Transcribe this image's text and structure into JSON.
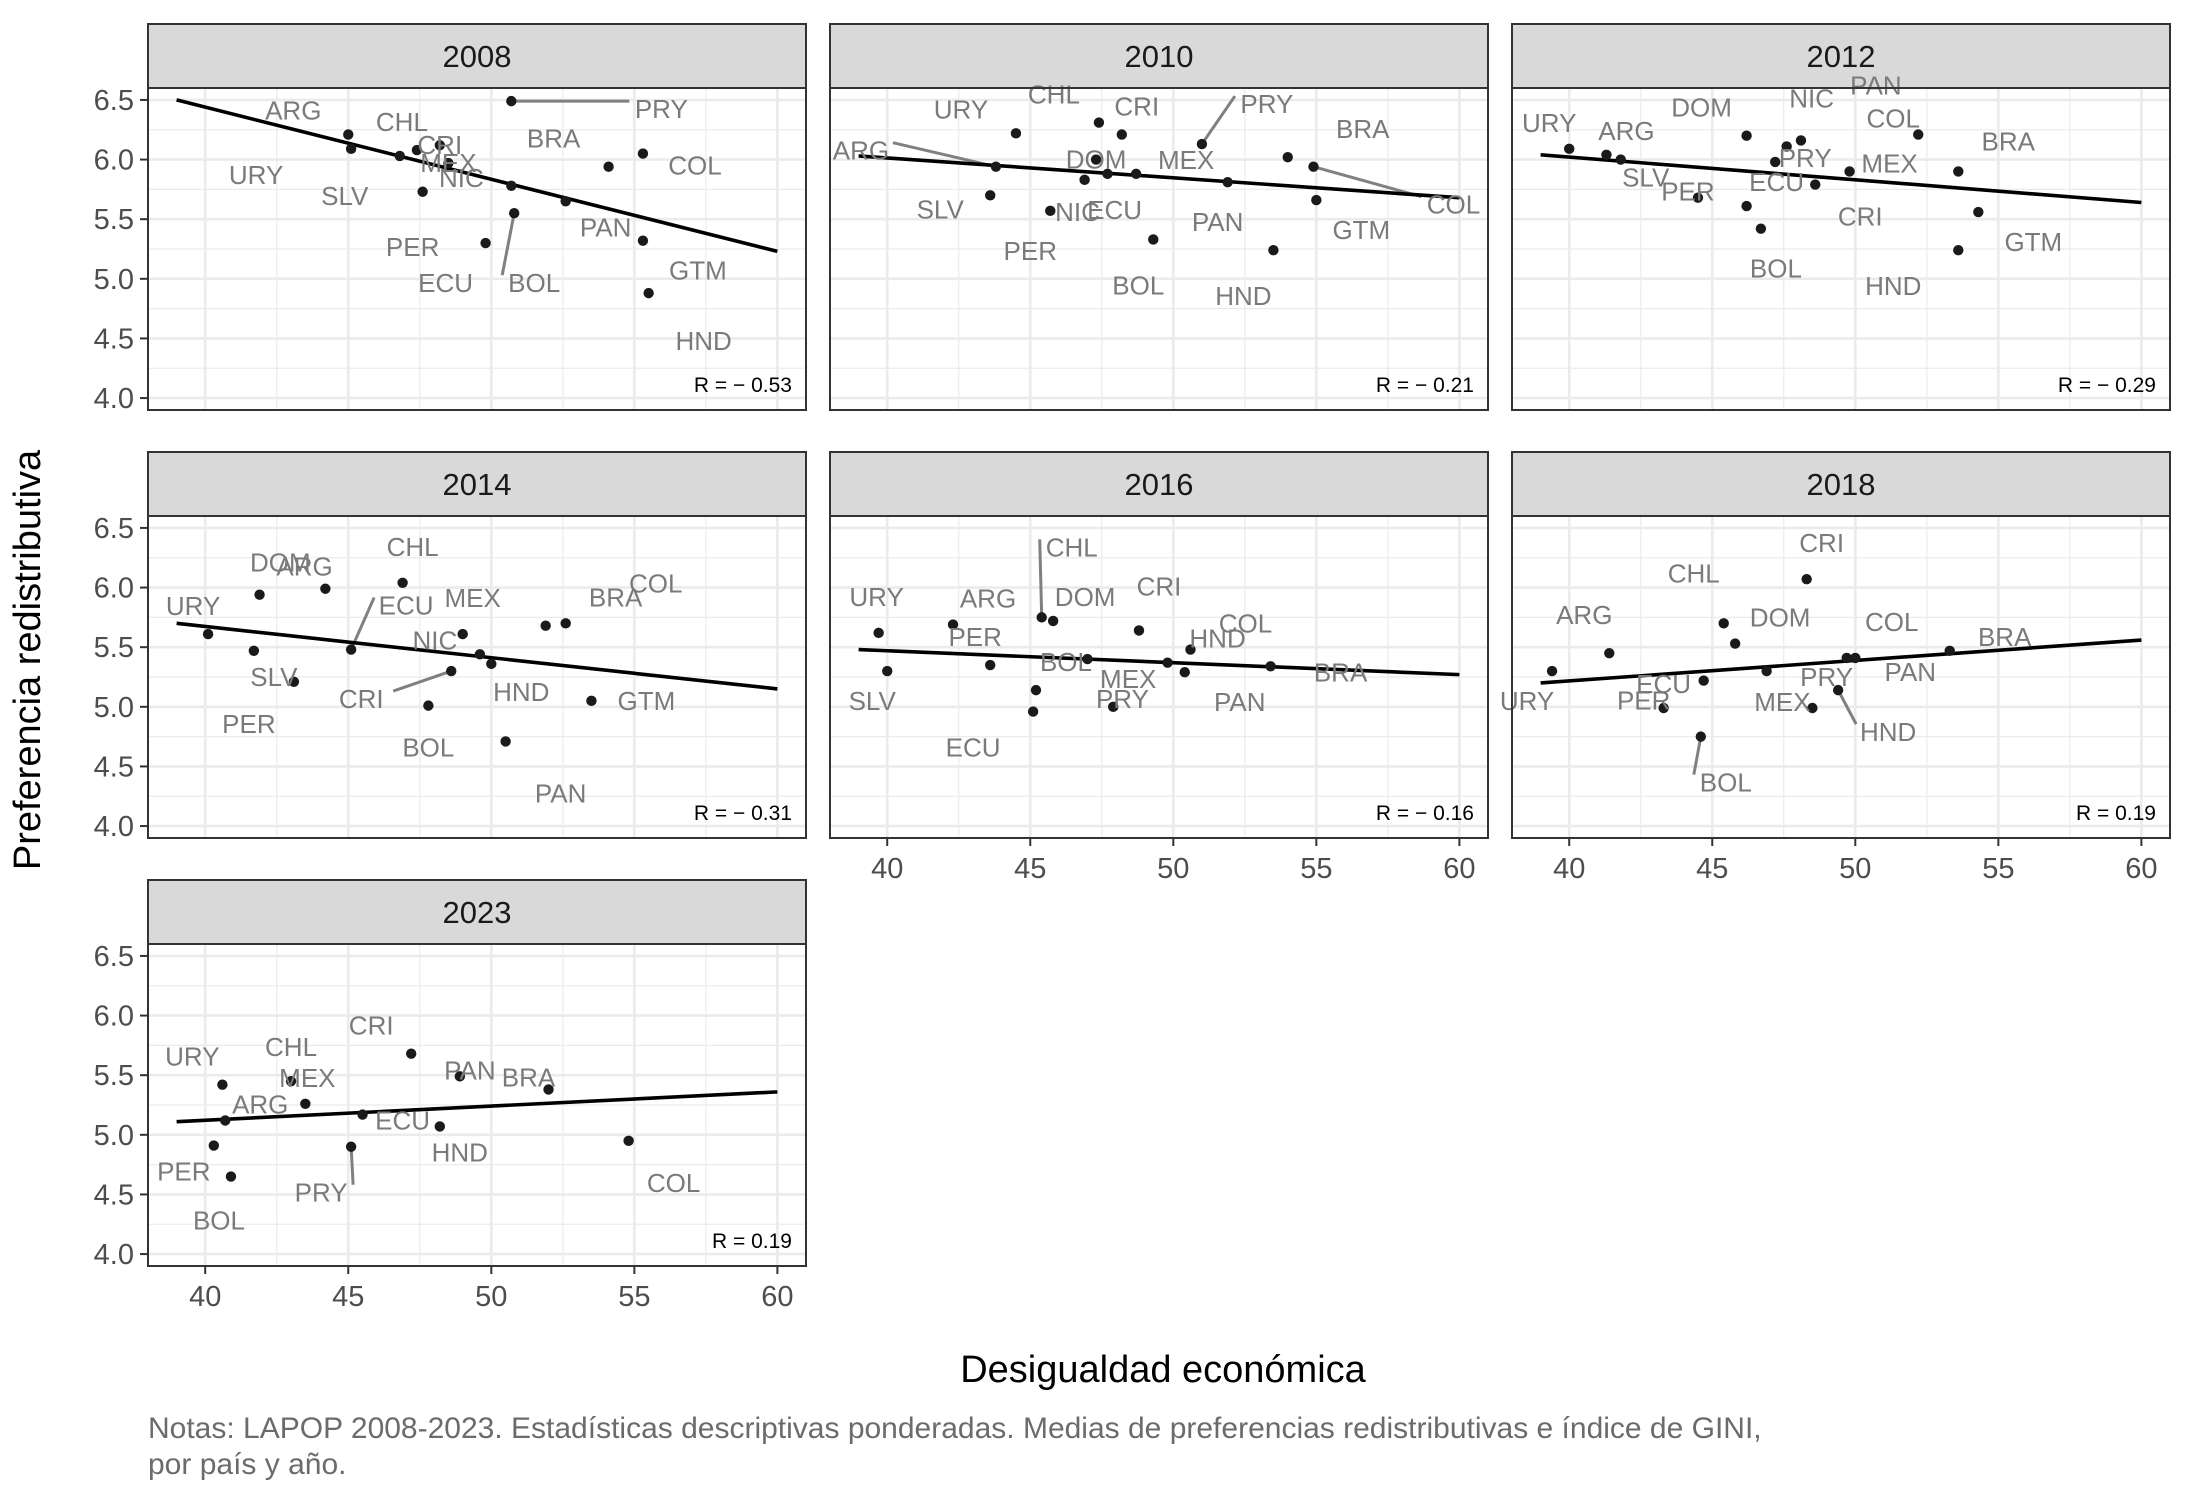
{
  "chart_data": {
    "type": "scatter",
    "xlabel": "Desigualdad económica",
    "ylabel": "Preferencia redistributiva",
    "xlim": [
      38,
      61
    ],
    "ylim": [
      3.9,
      6.6
    ],
    "x_ticks": [
      40,
      45,
      50,
      55,
      60
    ],
    "y_ticks": [
      4.0,
      4.5,
      5.0,
      5.5,
      6.0,
      6.5
    ],
    "x_tick_labels": [
      "40",
      "45",
      "50",
      "55",
      "60"
    ],
    "y_tick_labels": [
      "4.0",
      "4.5",
      "5.0",
      "5.5",
      "6.0",
      "6.5"
    ],
    "grid": true,
    "legend": "none",
    "facets": [
      {
        "title": "2008",
        "r_label": "R = − 0.53",
        "fit_line": {
          "x": [
            39,
            60
          ],
          "y": [
            6.5,
            5.23
          ]
        },
        "points": [
          {
            "label": "PRY",
            "x": 50.7,
            "y": 6.49
          },
          {
            "label": "ARG",
            "x": 45.0,
            "y": 6.21
          },
          {
            "label": "CHL",
            "x": 47.4,
            "y": 6.08
          },
          {
            "label": "URY",
            "x": 45.1,
            "y": 6.09
          },
          {
            "label": "SLV",
            "x": 46.8,
            "y": 6.03
          },
          {
            "label": "CRI",
            "x": 48.2,
            "y": 6.12
          },
          {
            "label": "MEX",
            "x": 48.5,
            "y": 5.97
          },
          {
            "label": "NIC",
            "x": 50.7,
            "y": 5.78
          },
          {
            "label": "BRA",
            "x": 54.1,
            "y": 5.94
          },
          {
            "label": "COL",
            "x": 55.3,
            "y": 6.05
          },
          {
            "label": "PER",
            "x": 47.6,
            "y": 5.73
          },
          {
            "label": "PAN",
            "x": 52.6,
            "y": 5.65
          },
          {
            "label": "ECU",
            "x": 49.8,
            "y": 5.3
          },
          {
            "label": "BOL",
            "x": 50.8,
            "y": 5.55
          },
          {
            "label": "GTM",
            "x": 55.3,
            "y": 5.32
          },
          {
            "label": "HND",
            "x": 55.5,
            "y": 4.88
          }
        ]
      },
      {
        "title": "2010",
        "r_label": "R = − 0.21",
        "fit_line": {
          "x": [
            39,
            60
          ],
          "y": [
            6.03,
            5.68
          ]
        },
        "points": [
          {
            "label": "URY",
            "x": 44.5,
            "y": 6.22
          },
          {
            "label": "CHL",
            "x": 47.4,
            "y": 6.31
          },
          {
            "label": "CRI",
            "x": 48.2,
            "y": 6.21
          },
          {
            "label": "PRY",
            "x": 51.0,
            "y": 6.13
          },
          {
            "label": "BRA",
            "x": 54.0,
            "y": 6.02
          },
          {
            "label": "ARG",
            "x": 43.8,
            "y": 5.94
          },
          {
            "label": "COL",
            "x": 54.9,
            "y": 5.94
          },
          {
            "label": "MEX",
            "x": 48.7,
            "y": 5.88
          },
          {
            "label": "DOM",
            "x": 47.3,
            "y": 6.0
          },
          {
            "label": "NIC",
            "x": 47.7,
            "y": 5.88
          },
          {
            "label": "SLV",
            "x": 43.6,
            "y": 5.7
          },
          {
            "label": "PER",
            "x": 45.7,
            "y": 5.57
          },
          {
            "label": "ECU",
            "x": 46.9,
            "y": 5.83
          },
          {
            "label": "PAN",
            "x": 51.9,
            "y": 5.81
          },
          {
            "label": "GTM",
            "x": 55.0,
            "y": 5.66
          },
          {
            "label": "BOL",
            "x": 49.3,
            "y": 5.33
          },
          {
            "label": "HND",
            "x": 53.5,
            "y": 5.24
          }
        ]
      },
      {
        "title": "2012",
        "r_label": "R = − 0.29",
        "fit_line": {
          "x": [
            39,
            60
          ],
          "y": [
            6.04,
            5.64
          ]
        },
        "points": [
          {
            "label": "URY",
            "x": 40.0,
            "y": 6.09
          },
          {
            "label": "ARG",
            "x": 41.3,
            "y": 6.04
          },
          {
            "label": "SLV",
            "x": 41.8,
            "y": 6.0
          },
          {
            "label": "PER",
            "x": 44.5,
            "y": 5.68
          },
          {
            "label": "DOM",
            "x": 46.2,
            "y": 6.2
          },
          {
            "label": "PRY",
            "x": 47.2,
            "y": 5.98
          },
          {
            "label": "NIC",
            "x": 47.6,
            "y": 6.11
          },
          {
            "label": "PAN",
            "x": 48.1,
            "y": 6.16
          },
          {
            "label": "ECU",
            "x": 46.2,
            "y": 5.61
          },
          {
            "label": "BOL",
            "x": 46.7,
            "y": 5.42
          },
          {
            "label": "CRI",
            "x": 48.6,
            "y": 5.79
          },
          {
            "label": "MEX",
            "x": 49.8,
            "y": 5.9
          },
          {
            "label": "COL",
            "x": 52.2,
            "y": 6.21
          },
          {
            "label": "BRA",
            "x": 53.6,
            "y": 5.9
          },
          {
            "label": "GTM",
            "x": 54.3,
            "y": 5.56
          },
          {
            "label": "HND",
            "x": 53.6,
            "y": 5.24
          }
        ]
      },
      {
        "title": "2014",
        "r_label": "R = − 0.31",
        "fit_line": {
          "x": [
            39,
            60
          ],
          "y": [
            5.7,
            5.15
          ]
        },
        "points": [
          {
            "label": "URY",
            "x": 40.1,
            "y": 5.61
          },
          {
            "label": "ARG",
            "x": 41.9,
            "y": 5.94
          },
          {
            "label": "DOM",
            "x": 44.2,
            "y": 5.99
          },
          {
            "label": "CHL",
            "x": 46.9,
            "y": 6.04
          },
          {
            "label": "SLV",
            "x": 41.7,
            "y": 5.47
          },
          {
            "label": "PER",
            "x": 43.1,
            "y": 5.21
          },
          {
            "label": "ECU",
            "x": 45.1,
            "y": 5.48
          },
          {
            "label": "NIC",
            "x": 49.6,
            "y": 5.44
          },
          {
            "label": "CRI",
            "x": 48.6,
            "y": 5.3
          },
          {
            "label": "BOL",
            "x": 47.8,
            "y": 5.01
          },
          {
            "label": "MEX",
            "x": 49.0,
            "y": 5.61
          },
          {
            "label": "HND",
            "x": 50.0,
            "y": 5.36
          },
          {
            "label": "COL",
            "x": 52.6,
            "y": 5.7
          },
          {
            "label": "BRA",
            "x": 51.9,
            "y": 5.68
          },
          {
            "label": "GTM",
            "x": 53.5,
            "y": 5.05
          },
          {
            "label": "PAN",
            "x": 50.5,
            "y": 4.71
          }
        ]
      },
      {
        "title": "2016",
        "r_label": "R = − 0.16",
        "fit_line": {
          "x": [
            39,
            60
          ],
          "y": [
            5.48,
            5.27
          ]
        },
        "points": [
          {
            "label": "URY",
            "x": 39.7,
            "y": 5.62
          },
          {
            "label": "SLV",
            "x": 40.0,
            "y": 5.3
          },
          {
            "label": "ARG",
            "x": 42.3,
            "y": 5.69
          },
          {
            "label": "PER",
            "x": 43.6,
            "y": 5.35
          },
          {
            "label": "CHL",
            "x": 45.4,
            "y": 5.75
          },
          {
            "label": "DOM",
            "x": 45.8,
            "y": 5.72
          },
          {
            "label": "BOL",
            "x": 45.2,
            "y": 5.14
          },
          {
            "label": "ECU",
            "x": 45.1,
            "y": 4.96
          },
          {
            "label": "PRY",
            "x": 47.0,
            "y": 5.4
          },
          {
            "label": "HND",
            "x": 49.8,
            "y": 5.37
          },
          {
            "label": "CRI",
            "x": 48.8,
            "y": 5.64
          },
          {
            "label": "COL",
            "x": 50.6,
            "y": 5.48
          },
          {
            "label": "MEX",
            "x": 47.9,
            "y": 5.0
          },
          {
            "label": "PAN",
            "x": 50.4,
            "y": 5.29
          },
          {
            "label": "BRA",
            "x": 53.4,
            "y": 5.34
          }
        ]
      },
      {
        "title": "2018",
        "r_label": "R = 0.19",
        "fit_line": {
          "x": [
            39,
            60
          ],
          "y": [
            5.2,
            5.56
          ]
        },
        "points": [
          {
            "label": "URY",
            "x": 39.4,
            "y": 5.3
          },
          {
            "label": "ARG",
            "x": 41.4,
            "y": 5.45
          },
          {
            "label": "ECU",
            "x": 43.3,
            "y": 4.99
          },
          {
            "label": "CHL",
            "x": 45.4,
            "y": 5.7
          },
          {
            "label": "DOM",
            "x": 45.8,
            "y": 5.53
          },
          {
            "label": "PER",
            "x": 44.7,
            "y": 5.22
          },
          {
            "label": "BOL",
            "x": 44.6,
            "y": 4.75
          },
          {
            "label": "PRY",
            "x": 46.9,
            "y": 5.3
          },
          {
            "label": "MEX",
            "x": 48.5,
            "y": 4.99
          },
          {
            "label": "CRI",
            "x": 48.3,
            "y": 6.07
          },
          {
            "label": "COL",
            "x": 49.7,
            "y": 5.41
          },
          {
            "label": "PAN",
            "x": 50.0,
            "y": 5.41
          },
          {
            "label": "HND",
            "x": 49.4,
            "y": 5.14
          },
          {
            "label": "BRA",
            "x": 53.3,
            "y": 5.47
          }
        ]
      },
      {
        "title": "2023",
        "r_label": "R = 0.19",
        "fit_line": {
          "x": [
            39,
            60
          ],
          "y": [
            5.11,
            5.36
          ]
        },
        "points": [
          {
            "label": "URY",
            "x": 40.6,
            "y": 5.42
          },
          {
            "label": "ARG",
            "x": 40.7,
            "y": 5.12
          },
          {
            "label": "PER",
            "x": 40.3,
            "y": 4.91
          },
          {
            "label": "BOL",
            "x": 40.9,
            "y": 4.65
          },
          {
            "label": "CHL",
            "x": 43.0,
            "y": 5.45
          },
          {
            "label": "MEX",
            "x": 43.5,
            "y": 5.26
          },
          {
            "label": "PRY",
            "x": 45.1,
            "y": 4.9
          },
          {
            "label": "ECU",
            "x": 45.5,
            "y": 5.17
          },
          {
            "label": "CRI",
            "x": 47.2,
            "y": 5.68
          },
          {
            "label": "PAN",
            "x": 48.9,
            "y": 5.49
          },
          {
            "label": "HND",
            "x": 48.2,
            "y": 5.07
          },
          {
            "label": "BRA",
            "x": 52.0,
            "y": 5.38
          },
          {
            "label": "COL",
            "x": 54.8,
            "y": 4.95
          }
        ]
      }
    ]
  },
  "notes": {
    "line1": "Notas: LAPOP 2008-2023. Estadísticas descriptivas ponderadas. Medias de preferencias redistributivas e índice de GINI,",
    "line2": "por país y año."
  },
  "colors": {
    "strip_fill": "#d9d9d9",
    "panel_border": "#333333",
    "point": "#1a1a1a",
    "label": "#7a7a7a",
    "fit_line": "#000000",
    "grid": "#ebebeb",
    "tick_text": "#4d4d4d"
  }
}
